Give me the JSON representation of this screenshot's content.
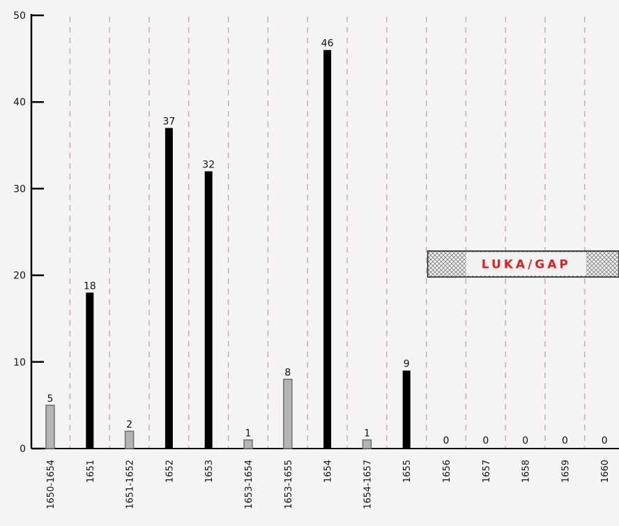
{
  "chart_data": {
    "type": "bar",
    "title": "",
    "xlabel": "",
    "ylabel": "",
    "ylim": [
      0,
      50
    ],
    "yticks": [
      "0",
      "10",
      "20",
      "30",
      "40",
      "50"
    ],
    "grid": "vertical dashed separators",
    "categories": [
      "1650-1654",
      "1651",
      "1651-1652",
      "1652",
      "1653",
      "1653-1654",
      "1653-1655",
      "1654",
      "1654-1657",
      "1655",
      "1656",
      "1657",
      "1658",
      "1659",
      "1660"
    ],
    "values": [
      5,
      18,
      2,
      37,
      32,
      1,
      8,
      46,
      1,
      9,
      0,
      0,
      0,
      0,
      0
    ],
    "bar_styles": [
      "range",
      "year",
      "range",
      "year",
      "year",
      "range",
      "range",
      "year",
      "range",
      "year",
      "year",
      "year",
      "year",
      "year",
      "year"
    ],
    "colors": {
      "year": "#000000",
      "range_fill": "#b4b4b4",
      "range_stroke": "#6e6e6e",
      "grid": "#c9a0a0",
      "gap_text": "#e02020"
    },
    "annotation": {
      "text": "LUKA/GAP",
      "y_from": 19.8,
      "y_to": 22.8,
      "from_category": "1656",
      "to_category": "1660"
    }
  }
}
